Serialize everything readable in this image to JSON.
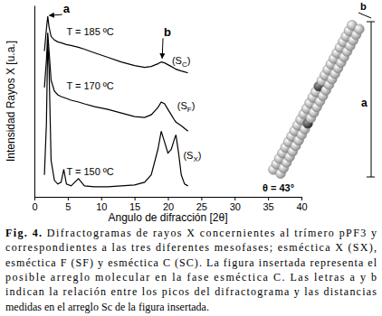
{
  "chart_data": {
    "type": "line",
    "x_label": "Angulo de difracción [2θ]",
    "y_label": "Intensidad Rayos X [u.a.]",
    "x": [
      1.5,
      1.8,
      2.0,
      2.2,
      2.5,
      3,
      3.5,
      4,
      4.4,
      4.8,
      5.5,
      6.6,
      7.5,
      9,
      11,
      13,
      15,
      16.5,
      17.5,
      18.5,
      19,
      19.5,
      20,
      20.5,
      21,
      21.2,
      21.6,
      22,
      22.5,
      23
    ],
    "series": [
      {
        "name": "T = 185 ºC",
        "color": "#000000",
        "values": [
          80,
          92,
          99,
          93,
          88,
          86,
          85,
          84.5,
          84,
          83.5,
          83,
          82,
          81,
          79,
          76.5,
          74,
          72,
          71,
          71.5,
          73,
          74,
          73.5,
          72.5,
          71.5,
          70.5,
          70,
          69.5,
          69,
          68.5,
          68
        ]
      },
      {
        "name": "T = 170 ºC",
        "color": "#000000",
        "values": [
          60,
          75,
          90,
          80,
          64,
          58,
          56,
          55,
          54.5,
          54,
          53,
          52,
          51,
          49.5,
          48,
          46,
          44,
          43.5,
          45,
          49,
          52,
          51,
          48,
          45,
          42,
          41,
          40,
          39,
          37.5,
          36
        ]
      },
      {
        "name": "T = 150 ºC",
        "color": "#000000",
        "values": [
          12,
          40,
          85,
          70,
          20,
          9,
          7,
          8,
          15,
          7,
          6,
          10,
          6,
          5.5,
          5.5,
          6,
          6.5,
          8,
          12,
          26,
          36,
          30,
          24,
          26,
          32,
          34,
          24,
          12,
          7,
          6
        ]
      }
    ],
    "xlim": [
      0,
      40
    ],
    "xticks": [
      0,
      5,
      10,
      15,
      20,
      25,
      30,
      35,
      40
    ],
    "ylim": [
      0,
      105
    ],
    "tick_labels": "x",
    "grid": false,
    "annotations": [
      {
        "text": "a",
        "x": 4.3,
        "y": 101,
        "target_x": 2.1,
        "target_y": 99
      },
      {
        "text": "b",
        "x": 19.4,
        "y": 88,
        "target_x": 19,
        "target_y": 75.5
      },
      {
        "text": "(S",
        "sub": "C",
        "suffix": ")",
        "x": 20.6,
        "y": 73
      },
      {
        "text": "(S",
        "sub": "F",
        "suffix": ")",
        "x": 21.4,
        "y": 48
      },
      {
        "text": "(S",
        "sub": "X",
        "suffix": ")",
        "x": 22.3,
        "y": 21
      }
    ],
    "inset": {
      "length_label": "a",
      "width_label": "b",
      "angle_label": "θ = 43°"
    },
    "caption_label": "Fig. 4.",
    "caption": [
      " Difractogramas de rayos X concernientes al trímero pPF3 y",
      "correspondientes a las tres diferentes mesofases; esméctica X (SX),",
      "esméctica F (SF) y esméctica C (SC). La figura insertada representa el",
      "posible arreglo molecular en la fase esméctica C. Las letras a y b",
      "indican la relación entre los picos del difractograma y las distancias",
      "medidas en el arreglo Sc de la figura insertada."
    ]
  }
}
